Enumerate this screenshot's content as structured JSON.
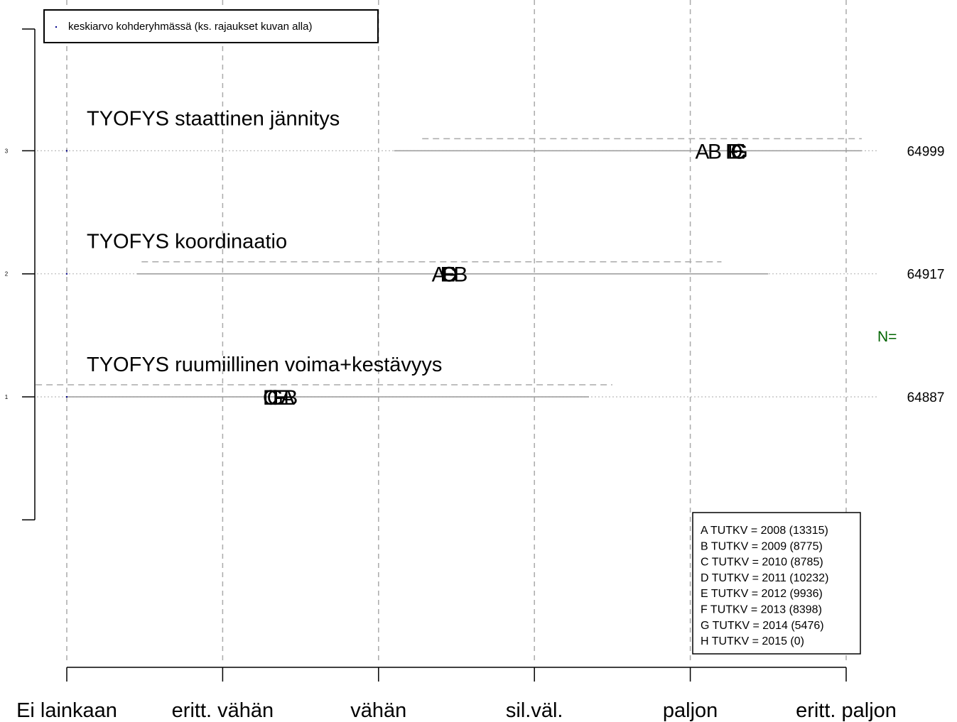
{
  "chart_data": {
    "type": "scatter",
    "title": "",
    "xlabel": "",
    "ylabel": "",
    "x_categories": [
      "Ei lainkaan",
      "eritt. vähän",
      "vähän",
      "sil.väl.",
      "paljon",
      "eritt. paljon"
    ],
    "xlim": [
      1,
      6
    ],
    "ylim": [
      0,
      3.8
    ],
    "grid": true,
    "legend_top": {
      "position": "top-left",
      "text": "keskiarvo kohderyhmässä (ks. rajaukset kuvan alla)",
      "symbol_color": "#00008b"
    },
    "legend_bottom": {
      "position": "bottom-right",
      "entries": [
        "A  TUTKV = 2008 (13315)",
        "B  TUTKV = 2009 (8775)",
        "C  TUTKV = 2010 (8785)",
        "D  TUTKV = 2011 (10232)",
        "E  TUTKV = 2012 (9936)",
        "F  TUTKV = 2013 (8398)",
        "G  TUTKV = 2014 (5476)",
        "H  TUTKV = 2015 (0)"
      ]
    },
    "n_label": "N=",
    "n_label_color": "#006400",
    "y_tick_labels": [
      "1",
      "2",
      "3"
    ],
    "items": [
      {
        "y": 1,
        "label": "TYOFYS ruumiillinen voima+kestävyys",
        "n": "64887",
        "target_mean": 1,
        "range": [
          1,
          4.35
        ],
        "dashed_range": [
          0.8,
          4.5
        ],
        "points": [
          {
            "letter": "A",
            "x": 2.41
          },
          {
            "letter": "B",
            "x": 2.43
          },
          {
            "letter": "C",
            "x": 2.3
          },
          {
            "letter": "D",
            "x": 2.3
          },
          {
            "letter": "E",
            "x": 2.36
          },
          {
            "letter": "F",
            "x": 2.36
          },
          {
            "letter": "G",
            "x": 2.33
          }
        ]
      },
      {
        "y": 2,
        "label": "TYOFYS koordinaatio",
        "n": "64917",
        "target_mean": 1,
        "range": [
          1.45,
          5.5
        ],
        "dashed_range": [
          1.48,
          5.2
        ],
        "points": [
          {
            "letter": "A",
            "x": 3.38
          },
          {
            "letter": "B",
            "x": 3.52
          },
          {
            "letter": "C",
            "x": 3.44
          },
          {
            "letter": "D",
            "x": 3.45
          },
          {
            "letter": "E",
            "x": 3.44
          },
          {
            "letter": "F",
            "x": 3.43
          },
          {
            "letter": "G",
            "x": 3.45
          }
        ]
      },
      {
        "y": 3,
        "label": "TYOFYS staattinen jännitys",
        "n": "64999",
        "target_mean": 1,
        "range": [
          3.1,
          6.1
        ],
        "dashed_range": [
          3.28,
          6.1
        ],
        "points": [
          {
            "letter": "A",
            "x": 5.07
          },
          {
            "letter": "B",
            "x": 5.15
          },
          {
            "letter": "C",
            "x": 5.3
          },
          {
            "letter": "D",
            "x": 5.28
          },
          {
            "letter": "E",
            "x": 5.3
          },
          {
            "letter": "F",
            "x": 5.26
          },
          {
            "letter": "G",
            "x": 5.31
          }
        ]
      }
    ]
  }
}
